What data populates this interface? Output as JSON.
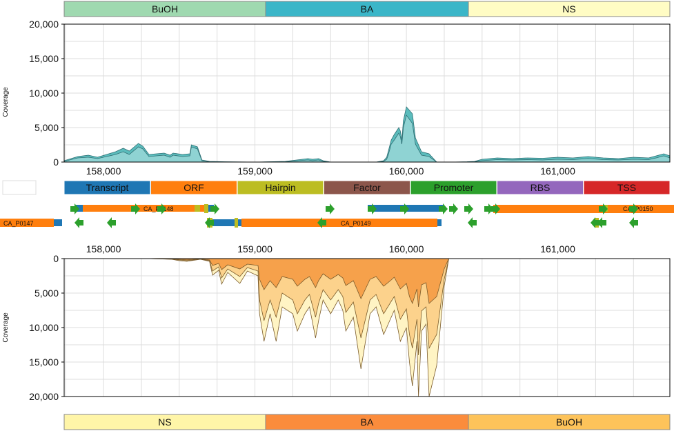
{
  "colors": {
    "top_fill": "#5bbcbc",
    "top_fill_light": "#8fd3d3",
    "top_stroke": "#2f6f74",
    "bot_fill_1": "#f6a14b",
    "bot_fill_2": "#fcd28c",
    "bot_fill_3": "#fff4c4",
    "bot_stroke": "#7a5a2a",
    "grid": "#dddddd",
    "gene_arrow": "#2ca02c",
    "gene_orf": "#ff7f0e",
    "gene_transcript": "#1f77b4",
    "gene_hairpin": "#bcbd22"
  },
  "top_conditions": [
    {
      "label": "BuOH",
      "color": "#9fd9b0"
    },
    {
      "label": "BA",
      "color": "#3bb6c8"
    },
    {
      "label": "NS",
      "color": "#fffcc4"
    }
  ],
  "bottom_conditions": [
    {
      "label": "NS",
      "color": "#fff5a8"
    },
    {
      "label": "BA",
      "color": "#fb8c3c"
    },
    {
      "label": "BuOH",
      "color": "#fdc35a"
    }
  ],
  "legend": [
    {
      "label": "Transcript",
      "color": "#1f77b4"
    },
    {
      "label": "ORF",
      "color": "#ff7f0e"
    },
    {
      "label": "Hairpin",
      "color": "#bcbd22"
    },
    {
      "label": "Factor",
      "color": "#8c564b"
    },
    {
      "label": "Promoter",
      "color": "#2ca02c"
    },
    {
      "label": "RBS",
      "color": "#9467bd"
    },
    {
      "label": "TSS",
      "color": "#d62728"
    }
  ],
  "gene_labels": [
    "CA_P0147",
    "CA_P0148",
    "CA_P0149",
    "CA_P0150"
  ],
  "chart_data": [
    {
      "type": "area",
      "ylabel": "Coverage",
      "xlim": [
        157740,
        161740
      ],
      "ylim": [
        0,
        20000
      ],
      "xticks": [
        "158,000",
        "159,000",
        "160,000",
        "161,000"
      ],
      "xtick_values": [
        158000,
        159000,
        160000,
        161000
      ],
      "yticks": [
        "0",
        "5,000",
        "10,000",
        "15,000",
        "20,000"
      ],
      "ytick_values": [
        0,
        5000,
        10000,
        15000,
        20000
      ],
      "grid": true,
      "series": [
        {
          "x": [
            157740,
            157830,
            157900,
            157960,
            158020,
            158080,
            158130,
            158170,
            158230,
            158260,
            158300,
            158350,
            158400,
            158440,
            158460,
            158520,
            158570,
            158580,
            158620,
            158650,
            158700,
            158800,
            159000,
            159200,
            159350,
            159380,
            159420,
            159450,
            159500,
            159700,
            159800,
            159850,
            159870,
            159880,
            159900,
            159920,
            159950,
            159960,
            159970,
            159980,
            160000,
            160020,
            160040,
            160060,
            160100,
            160150,
            160200,
            160300,
            160400,
            160450,
            160500,
            160600,
            160700,
            160800,
            160900,
            161000,
            161100,
            161200,
            161300,
            161400,
            161500,
            161600,
            161650,
            161700,
            161740
          ],
          "values": [
            200,
            800,
            1000,
            700,
            1100,
            1500,
            2000,
            1600,
            2700,
            2300,
            1100,
            1200,
            1300,
            1000,
            1300,
            1100,
            1200,
            2500,
            2200,
            300,
            100,
            50,
            0,
            100,
            500,
            400,
            500,
            200,
            0,
            0,
            0,
            200,
            700,
            1500,
            3200,
            4000,
            5000,
            4500,
            3200,
            6000,
            8000,
            7500,
            7000,
            3500,
            1500,
            1200,
            0,
            0,
            50,
            100,
            400,
            600,
            500,
            600,
            550,
            700,
            600,
            800,
            600,
            500,
            700,
            600,
            900,
            1200,
            900
          ]
        },
        {
          "x": [
            157740,
            157830,
            157900,
            157960,
            158020,
            158080,
            158130,
            158170,
            158230,
            158260,
            158300,
            158350,
            158400,
            158440,
            158460,
            158520,
            158570,
            158580,
            158620,
            158650,
            158700,
            158800,
            159000,
            159200,
            159350,
            159380,
            159420,
            159450,
            159500,
            159700,
            159800,
            159850,
            159870,
            159880,
            159900,
            159920,
            159950,
            159960,
            159970,
            159980,
            160000,
            160020,
            160040,
            160060,
            160100,
            160150,
            160200,
            160300,
            160400,
            160450,
            160500,
            160600,
            160700,
            160800,
            160900,
            161000,
            161100,
            161200,
            161300,
            161400,
            161500,
            161600,
            161650,
            161700,
            161740
          ],
          "values": [
            100,
            600,
            700,
            500,
            800,
            1100,
            1500,
            1100,
            2200,
            1900,
            800,
            900,
            1000,
            700,
            1000,
            800,
            900,
            2200,
            1900,
            200,
            50,
            0,
            0,
            50,
            300,
            200,
            300,
            100,
            0,
            0,
            0,
            100,
            400,
            1000,
            2600,
            3200,
            4200,
            3700,
            2600,
            5000,
            6800,
            6200,
            5600,
            2600,
            1000,
            800,
            0,
            0,
            0,
            50,
            200,
            350,
            300,
            350,
            300,
            400,
            350,
            500,
            350,
            300,
            400,
            350,
            600,
            900,
            600
          ]
        }
      ]
    },
    {
      "type": "area",
      "ylabel": "Coverage",
      "xlim": [
        157740,
        161740
      ],
      "ylim": [
        0,
        20000
      ],
      "y_inverted": true,
      "xticks": [
        "158,000",
        "159,000",
        "160,000",
        "161,000"
      ],
      "xtick_values": [
        158000,
        159000,
        160000,
        161000
      ],
      "yticks": [
        "0",
        "5,000",
        "10,000",
        "15,000",
        "20,000"
      ],
      "ytick_values": [
        0,
        5000,
        10000,
        15000,
        20000
      ],
      "grid": true,
      "series": [
        {
          "x": [
            158290,
            158450,
            158500,
            158550,
            158640,
            158700,
            158720,
            158760,
            158780,
            158820,
            158900,
            158950,
            159020,
            159030,
            159060,
            159100,
            159140,
            159180,
            159250,
            159280,
            159330,
            159360,
            159400,
            159420,
            159450,
            159500,
            159550,
            159580,
            159600,
            159650,
            159700,
            159760,
            159800,
            159850,
            159900,
            159920,
            159960,
            160000,
            160020,
            160040,
            160070,
            160080,
            160100,
            160130,
            160150,
            160200,
            160250,
            160280
          ],
          "values": [
            0,
            100,
            300,
            400,
            100,
            400,
            2400,
            1700,
            3700,
            2000,
            3600,
            1800,
            2500,
            8000,
            12000,
            8000,
            12000,
            7000,
            8000,
            10500,
            8000,
            7000,
            11500,
            9000,
            6000,
            8000,
            6000,
            7500,
            10500,
            8500,
            16000,
            8000,
            7000,
            11000,
            8500,
            7500,
            12000,
            10000,
            15000,
            18500,
            12000,
            20000,
            10500,
            9500,
            20000,
            15500,
            4000,
            0
          ]
        },
        {
          "x": [
            158290,
            158450,
            158500,
            158550,
            158640,
            158700,
            158720,
            158760,
            158780,
            158820,
            158900,
            158950,
            159020,
            159030,
            159060,
            159100,
            159140,
            159180,
            159250,
            159280,
            159330,
            159360,
            159400,
            159420,
            159450,
            159500,
            159550,
            159580,
            159600,
            159650,
            159700,
            159760,
            159800,
            159850,
            159900,
            159920,
            159960,
            160000,
            160020,
            160040,
            160070,
            160080,
            160100,
            160130,
            160150,
            160200,
            160250,
            160280
          ],
          "values": [
            0,
            80,
            200,
            300,
            80,
            300,
            1800,
            1200,
            2800,
            1500,
            2600,
            1300,
            1800,
            6000,
            9000,
            6000,
            8500,
            5000,
            6000,
            8000,
            6000,
            5200,
            8500,
            6500,
            4500,
            6000,
            4500,
            5500,
            7800,
            6300,
            11500,
            6000,
            5200,
            8000,
            6200,
            5500,
            8800,
            7300,
            11000,
            13000,
            8800,
            14000,
            7600,
            7000,
            13000,
            11000,
            3000,
            0
          ]
        },
        {
          "x": [
            158290,
            158450,
            158500,
            158550,
            158640,
            158700,
            158720,
            158760,
            158780,
            158820,
            158900,
            158950,
            159020,
            159030,
            159060,
            159100,
            159140,
            159180,
            159250,
            159280,
            159330,
            159360,
            159400,
            159420,
            159450,
            159500,
            159550,
            159580,
            159600,
            159650,
            159700,
            159760,
            159800,
            159850,
            159900,
            159920,
            159960,
            160000,
            160020,
            160040,
            160070,
            160080,
            160100,
            160130,
            160150,
            160200,
            160250,
            160280
          ],
          "values": [
            0,
            50,
            120,
            180,
            50,
            200,
            1000,
            700,
            1600,
            900,
            1500,
            800,
            1000,
            3000,
            4500,
            3200,
            4200,
            2600,
            3000,
            4000,
            3000,
            2600,
            4200,
            3200,
            2200,
            3000,
            2300,
            2800,
            3900,
            3200,
            5800,
            3000,
            2600,
            4000,
            3100,
            2700,
            4400,
            3600,
            5500,
            6500,
            4400,
            7000,
            3800,
            3500,
            6500,
            5500,
            1500,
            0
          ]
        }
      ]
    }
  ]
}
